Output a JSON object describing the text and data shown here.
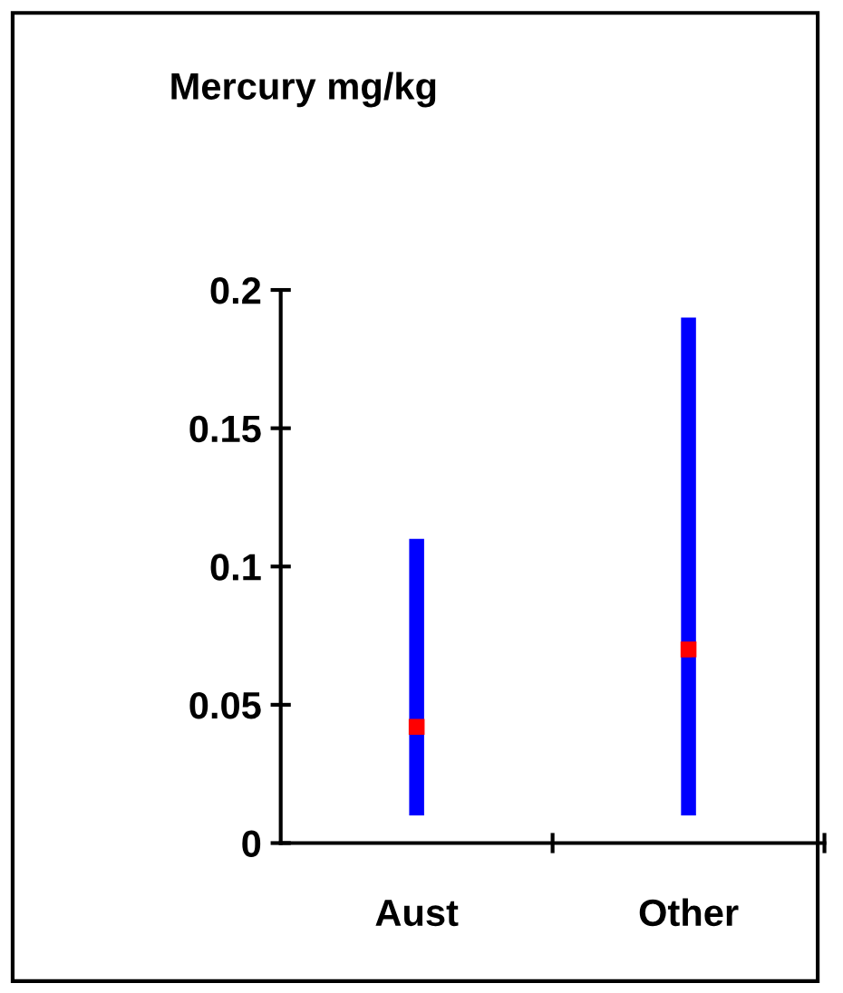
{
  "chart_data": {
    "type": "bar",
    "title": "Mercury mg/kg",
    "categories": [
      "Aust",
      "Other"
    ],
    "series": [
      {
        "color": "#0000ff",
        "base": [
          0.01,
          0.01
        ],
        "values": [
          0.1,
          0.18
        ]
      },
      {
        "type": "scatter",
        "color": "#ff0000",
        "marker": "square",
        "values": [
          0.042,
          0.07
        ]
      }
    ],
    "ylim": [
      0,
      0.2
    ],
    "yticks": [
      0,
      0.05,
      0.1,
      0.15,
      0.2
    ],
    "grid": false,
    "legend": false
  }
}
